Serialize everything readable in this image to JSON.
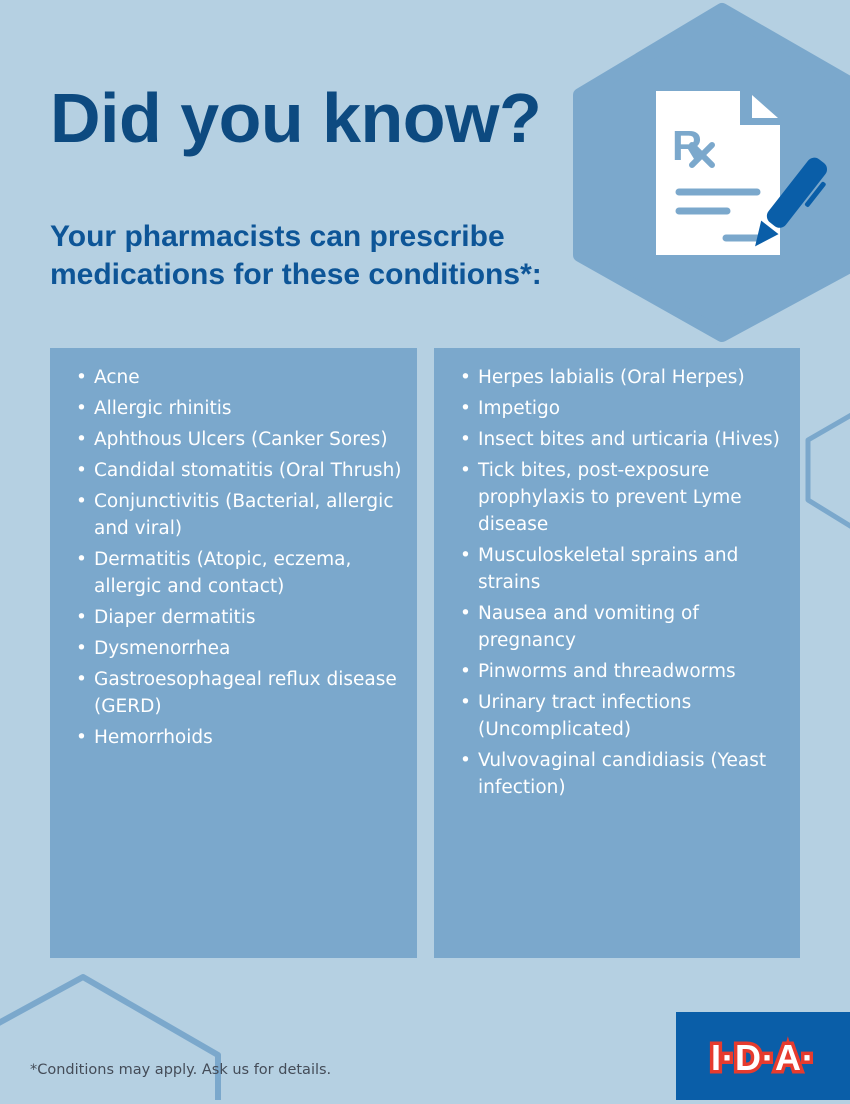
{
  "title": "Did you know?",
  "subtitle": "Your pharmacists can prescribe medications for these conditions*:",
  "left_conditions": [
    "Acne",
    "Allergic rhinitis",
    "Aphthous Ulcers (Canker Sores)",
    "Candidal stomatitis (Oral Thrush)",
    "Conjunctivitis (Bacterial, allergic and viral)",
    "Dermatitis (Atopic, eczema, allergic and contact)",
    "Diaper dermatitis",
    "Dysmenorrhea",
    "Gastroesophageal reflux disease (GERD)",
    "Hemorrhoids"
  ],
  "right_conditions": [
    "Herpes labialis (Oral Herpes)",
    "Impetigo",
    "Insect bites and urticaria (Hives)",
    "Tick bites, post-exposure prophylaxis to prevent Lyme disease",
    "Musculoskeletal sprains and strains",
    "Nausea and vomiting of pregnancy",
    "Pinworms and threadworms",
    "Urinary tract infections (Uncomplicated)",
    "Vulvovaginal candidiasis (Yeast infection)"
  ],
  "footnote": "*Conditions may apply. Ask us for details.",
  "logo_text": "I·D·A·",
  "icon": "prescription-pen-icon",
  "colors": {
    "background": "#b5d0e2",
    "panel": "#7ba8cc",
    "heading": "#0d4a80",
    "logo_bg": "#0a5ea8",
    "logo_red": "#e63b2e"
  }
}
